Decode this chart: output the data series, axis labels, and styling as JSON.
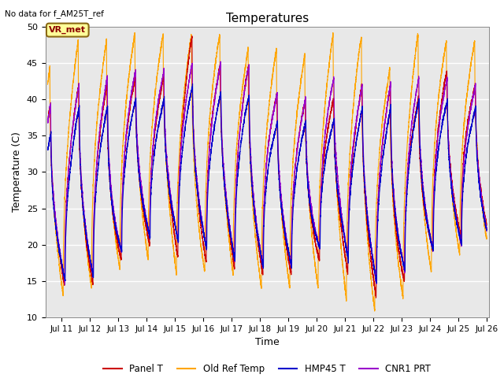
{
  "title": "Temperatures",
  "xlabel": "Time",
  "ylabel": "Temperature (C)",
  "note": "No data for f_AM25T_ref",
  "annotation": "VR_met",
  "ylim": [
    10,
    50
  ],
  "xlim_days": [
    10.42,
    26.08
  ],
  "x_ticks": [
    11,
    12,
    13,
    14,
    15,
    16,
    17,
    18,
    19,
    20,
    21,
    22,
    23,
    24,
    25,
    26
  ],
  "x_tick_labels": [
    "Jul 11",
    "Jul 12",
    "Jul 13",
    "Jul 14",
    "Jul 15",
    "Jul 16",
    "Jul 17",
    "Jul 18",
    "Jul 19",
    "Jul 20",
    "Jul 21",
    "Jul 22",
    "Jul 23",
    "Jul 24",
    "Jul 25",
    "Jul 26"
  ],
  "colors": {
    "panel_t": "#cc0000",
    "old_ref": "#ffa500",
    "hmp45": "#0000cc",
    "cnr1": "#9900cc"
  },
  "legend": [
    "Panel T",
    "Old Ref Temp",
    "HMP45 T",
    "CNR1 PRT"
  ],
  "background_color": "#e8e8e8",
  "grid_color": "white",
  "yticks": [
    10,
    15,
    20,
    25,
    30,
    35,
    40,
    45,
    50
  ]
}
